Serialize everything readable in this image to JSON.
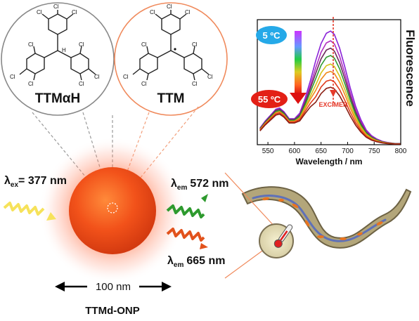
{
  "molecules": {
    "left": {
      "name": "TTMαH",
      "atom_h": "H",
      "substituent": "Cl"
    },
    "right": {
      "name": "TTM",
      "substituent": "Cl"
    }
  },
  "nanoparticle": {
    "excitation_sym": "λ",
    "excitation_sub": "ex",
    "excitation_value": "= 377  nm",
    "emission1_sym": "λ",
    "emission1_sub": "em",
    "emission1_value": "572 nm",
    "emission2_sym": "λ",
    "emission2_sub": "em",
    "emission2_value": "665 nm",
    "size_label": "100 nm",
    "name": "TTMd-ONP"
  },
  "chart_data": {
    "type": "line",
    "xlabel": "Wavelength / nm",
    "ylabel": "Fluorescence",
    "xlim": [
      530,
      800
    ],
    "xticks": [
      550,
      600,
      650,
      700,
      750,
      800
    ],
    "temp_low": "5 ºC",
    "temp_high": "55 ºC",
    "annotation": "EXCIMER",
    "curve_shape_x": [
      535,
      545,
      555,
      565,
      572,
      580,
      590,
      600,
      610,
      620,
      630,
      640,
      650,
      660,
      668,
      675,
      685,
      695,
      705,
      715,
      725,
      735,
      745,
      755,
      765,
      775,
      790,
      800
    ],
    "curve_shape_y": [
      0.14,
      0.2,
      0.25,
      0.3,
      0.31,
      0.28,
      0.22,
      0.22,
      0.27,
      0.4,
      0.56,
      0.74,
      0.89,
      0.98,
      1.0,
      0.97,
      0.85,
      0.68,
      0.5,
      0.34,
      0.22,
      0.13,
      0.08,
      0.05,
      0.03,
      0.02,
      0.01,
      0.01
    ],
    "series": [
      {
        "peak": 0.93,
        "shoulder": 0.3,
        "color": "#8a22d8"
      },
      {
        "peak": 0.85,
        "shoulder": 0.29,
        "color": "#b02ec0"
      },
      {
        "peak": 0.79,
        "shoulder": 0.29,
        "color": "#6b2a5a"
      },
      {
        "peak": 0.73,
        "shoulder": 0.28,
        "color": "#2e9a2e"
      },
      {
        "peak": 0.66,
        "shoulder": 0.27,
        "color": "#d4c21a"
      },
      {
        "peak": 0.6,
        "shoulder": 0.27,
        "color": "#f08a1a"
      },
      {
        "peak": 0.53,
        "shoulder": 0.26,
        "color": "#e03a1c"
      },
      {
        "peak": 0.47,
        "shoulder": 0.25,
        "color": "#8a1e12"
      }
    ],
    "colors": {
      "low_badge": "#25a9e8",
      "high_badge": "#e32016",
      "arrow": "#e53a2a"
    }
  },
  "worm_colors": {
    "body": "#b3a67a",
    "outline": "#6d6244",
    "gut": "#4a64c8",
    "spots": "#e9741f"
  }
}
